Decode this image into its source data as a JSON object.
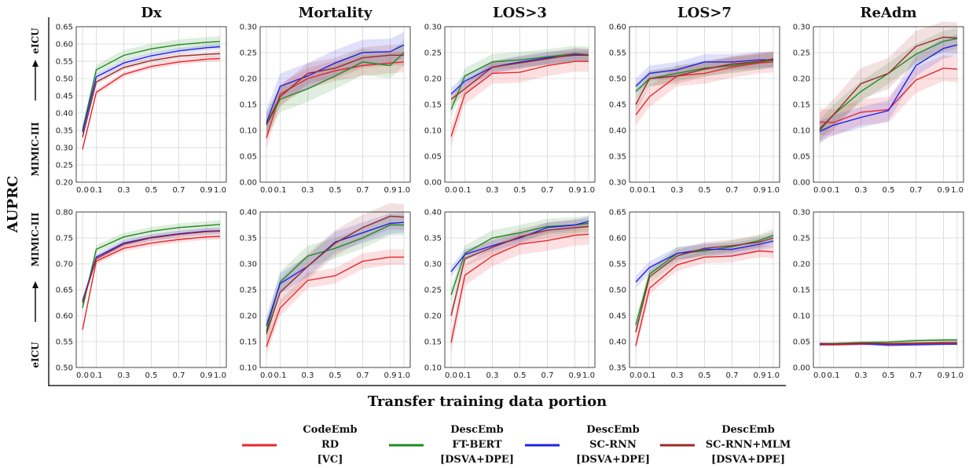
{
  "figure": {
    "column_titles": [
      "Dx",
      "Mortality",
      "LOS>3",
      "LOS>7",
      "ReAdm"
    ],
    "row_labels": [
      {
        "top": "eICU",
        "bottom": "MIMIC-III"
      },
      {
        "top": "MIMIC-III",
        "bottom": "eICU"
      }
    ],
    "ylabel": "AUPRC",
    "xlabel": "Transfer training data portion"
  },
  "legend": [
    {
      "lines": [
        "CodeEmb",
        "RD",
        "[VC]"
      ],
      "color": "#e8262b"
    },
    {
      "lines": [
        "DescEmb",
        "FT-BERT",
        "[DSVA+DPE]"
      ],
      "color": "#1f8a1f"
    },
    {
      "lines": [
        "DescEmb",
        "SC-RNN",
        "[DSVA+DPE]"
      ],
      "color": "#2222e6"
    },
    {
      "lines": [
        "DescEmb",
        "SC-RNN+MLM",
        "[DSVA+DPE]"
      ],
      "color": "#9b2a2a"
    }
  ],
  "chart_data": [
    {
      "type": "line",
      "title": "Dx",
      "row": 0,
      "col": 0,
      "x": [
        0.0,
        0.1,
        0.3,
        0.5,
        0.7,
        0.9,
        1.0
      ],
      "x_tick_labels": [
        "0.0",
        "0.1",
        "0.3",
        "0.5",
        "0.7",
        "0.9",
        "1.0"
      ],
      "ylim": [
        0.2,
        0.65
      ],
      "y_ticks": [
        "0.20",
        "0.25",
        "0.30",
        "0.35",
        "0.40",
        "0.45",
        "0.50",
        "0.55",
        "0.60",
        "0.65"
      ],
      "series": [
        {
          "values": [
            0.295,
            0.46,
            0.512,
            0.535,
            0.548,
            0.556,
            0.558
          ],
          "band": 0.008
        },
        {
          "values": [
            0.35,
            0.525,
            0.567,
            0.586,
            0.598,
            0.605,
            0.607
          ],
          "band": 0.015
        },
        {
          "values": [
            0.345,
            0.505,
            0.545,
            0.566,
            0.58,
            0.589,
            0.592
          ],
          "band": 0.008
        },
        {
          "values": [
            0.33,
            0.49,
            0.532,
            0.552,
            0.565,
            0.57,
            0.572
          ],
          "band": 0.008
        }
      ]
    },
    {
      "type": "line",
      "title": "Mortality",
      "row": 0,
      "col": 1,
      "x": [
        0.0,
        0.1,
        0.3,
        0.5,
        0.7,
        0.9,
        1.0
      ],
      "x_tick_labels": [
        "0.0",
        "0.1",
        "0.3",
        "0.5",
        "0.7",
        "0.9",
        "1.0"
      ],
      "ylim": [
        0.0,
        0.3
      ],
      "y_ticks": [
        "0.00",
        "0.05",
        "0.10",
        "0.15",
        "0.20",
        "0.25",
        "0.30"
      ],
      "series": [
        {
          "values": [
            0.085,
            0.17,
            0.2,
            0.215,
            0.225,
            0.23,
            0.232
          ],
          "band": 0.02
        },
        {
          "values": [
            0.11,
            0.16,
            0.18,
            0.205,
            0.232,
            0.225,
            0.25
          ],
          "band": 0.025
        },
        {
          "values": [
            0.115,
            0.185,
            0.205,
            0.23,
            0.25,
            0.252,
            0.265
          ],
          "band": 0.025
        },
        {
          "values": [
            0.112,
            0.165,
            0.21,
            0.22,
            0.24,
            0.245,
            0.245
          ],
          "band": 0.02
        }
      ]
    },
    {
      "type": "line",
      "title": "LOS>3",
      "row": 0,
      "col": 2,
      "x": [
        0.0,
        0.1,
        0.3,
        0.5,
        0.7,
        0.9,
        1.0
      ],
      "x_tick_labels": [
        "0.0",
        "0.1",
        "0.3",
        "0.5",
        "0.7",
        "0.9",
        "1.0"
      ],
      "ylim": [
        0.0,
        0.3
      ],
      "y_ticks": [
        "0.00",
        "0.05",
        "0.10",
        "0.15",
        "0.20",
        "0.25",
        "0.30"
      ],
      "series": [
        {
          "values": [
            0.088,
            0.17,
            0.21,
            0.212,
            0.225,
            0.233,
            0.233
          ],
          "band": 0.02
        },
        {
          "values": [
            0.14,
            0.205,
            0.232,
            0.236,
            0.242,
            0.248,
            0.246
          ],
          "band": 0.015
        },
        {
          "values": [
            0.17,
            0.195,
            0.222,
            0.232,
            0.24,
            0.245,
            0.245
          ],
          "band": 0.012
        },
        {
          "values": [
            0.16,
            0.18,
            0.222,
            0.23,
            0.238,
            0.247,
            0.245
          ],
          "band": 0.012
        }
      ]
    },
    {
      "type": "line",
      "title": "LOS>7",
      "row": 0,
      "col": 3,
      "x": [
        0.0,
        0.1,
        0.3,
        0.5,
        0.7,
        0.9,
        1.0
      ],
      "x_tick_labels": [
        "0.0",
        "0.1",
        "0.3",
        "0.5",
        "0.7",
        "0.9",
        "1.0"
      ],
      "ylim": [
        0.3,
        0.6
      ],
      "y_ticks": [
        "0.30",
        "0.35",
        "0.40",
        "0.45",
        "0.50",
        "0.55",
        "0.60"
      ],
      "series": [
        {
          "values": [
            0.43,
            0.465,
            0.505,
            0.51,
            0.522,
            0.53,
            0.532
          ],
          "band": 0.02
        },
        {
          "values": [
            0.475,
            0.5,
            0.51,
            0.52,
            0.525,
            0.532,
            0.535
          ],
          "band": 0.015
        },
        {
          "values": [
            0.485,
            0.51,
            0.517,
            0.532,
            0.532,
            0.536,
            0.536
          ],
          "band": 0.015
        },
        {
          "values": [
            0.45,
            0.5,
            0.505,
            0.518,
            0.528,
            0.533,
            0.538
          ],
          "band": 0.015
        }
      ]
    },
    {
      "type": "line",
      "title": "ReAdm",
      "row": 0,
      "col": 4,
      "x": [
        0.0,
        0.1,
        0.3,
        0.5,
        0.7,
        0.9,
        1.0
      ],
      "x_tick_labels": [
        "0.0",
        "0.1",
        "0.3",
        "0.5",
        "0.7",
        "0.9",
        "1.0"
      ],
      "ylim": [
        0.0,
        0.3
      ],
      "y_ticks": [
        "0.00",
        "0.05",
        "0.10",
        "0.15",
        "0.20",
        "0.25",
        "0.30"
      ],
      "series": [
        {
          "values": [
            0.116,
            0.115,
            0.135,
            0.14,
            0.197,
            0.22,
            0.218
          ],
          "band": 0.025
        },
        {
          "values": [
            0.1,
            0.13,
            0.175,
            0.21,
            0.247,
            0.272,
            0.277
          ],
          "band": 0.02
        },
        {
          "values": [
            0.098,
            0.11,
            0.125,
            0.138,
            0.225,
            0.258,
            0.265
          ],
          "band": 0.02
        },
        {
          "values": [
            0.103,
            0.13,
            0.19,
            0.21,
            0.262,
            0.28,
            0.278
          ],
          "band": 0.03
        }
      ]
    },
    {
      "type": "line",
      "row": 1,
      "col": 0,
      "x": [
        0.0,
        0.1,
        0.3,
        0.5,
        0.7,
        0.9,
        1.0
      ],
      "x_tick_labels": [
        "0.0",
        "0.1",
        "0.3",
        "0.5",
        "0.7",
        "0.9",
        "1.0"
      ],
      "ylim": [
        0.5,
        0.8
      ],
      "y_ticks": [
        "0.50",
        "0.55",
        "0.60",
        "0.65",
        "0.70",
        "0.75",
        "0.80"
      ],
      "series": [
        {
          "values": [
            0.573,
            0.705,
            0.73,
            0.74,
            0.747,
            0.752,
            0.753
          ],
          "band": 0.006
        },
        {
          "values": [
            0.615,
            0.728,
            0.752,
            0.763,
            0.77,
            0.774,
            0.776
          ],
          "band": 0.008
        },
        {
          "values": [
            0.628,
            0.713,
            0.74,
            0.751,
            0.758,
            0.763,
            0.764
          ],
          "band": 0.006
        },
        {
          "values": [
            0.625,
            0.71,
            0.738,
            0.75,
            0.757,
            0.762,
            0.763
          ],
          "band": 0.006
        }
      ]
    },
    {
      "type": "line",
      "row": 1,
      "col": 1,
      "x": [
        0.0,
        0.1,
        0.3,
        0.5,
        0.7,
        0.9,
        1.0
      ],
      "x_tick_labels": [
        "0.0",
        "0.1",
        "0.3",
        "0.5",
        "0.7",
        "0.9",
        "1.0"
      ],
      "ylim": [
        0.1,
        0.4
      ],
      "y_ticks": [
        "0.10",
        "0.15",
        "0.20",
        "0.25",
        "0.30",
        "0.35",
        "0.40"
      ],
      "series": [
        {
          "values": [
            0.14,
            0.215,
            0.268,
            0.277,
            0.305,
            0.313,
            0.313
          ],
          "band": 0.015
        },
        {
          "values": [
            0.17,
            0.265,
            0.315,
            0.33,
            0.35,
            0.375,
            0.375
          ],
          "band": 0.02
        },
        {
          "values": [
            0.18,
            0.262,
            0.295,
            0.342,
            0.36,
            0.378,
            0.38
          ],
          "band": 0.02
        },
        {
          "values": [
            0.165,
            0.245,
            0.295,
            0.34,
            0.37,
            0.392,
            0.39
          ],
          "band": 0.025
        }
      ]
    },
    {
      "type": "line",
      "row": 1,
      "col": 2,
      "x": [
        0.0,
        0.1,
        0.3,
        0.5,
        0.7,
        0.9,
        1.0
      ],
      "x_tick_labels": [
        "0.0",
        "0.1",
        "0.3",
        "0.5",
        "0.7",
        "0.9",
        "1.0"
      ],
      "ylim": [
        0.1,
        0.4
      ],
      "y_ticks": [
        "0.10",
        "0.15",
        "0.20",
        "0.25",
        "0.30",
        "0.35",
        "0.40"
      ],
      "series": [
        {
          "values": [
            0.148,
            0.278,
            0.315,
            0.338,
            0.345,
            0.355,
            0.357
          ],
          "band": 0.02
        },
        {
          "values": [
            0.24,
            0.32,
            0.35,
            0.36,
            0.372,
            0.375,
            0.378
          ],
          "band": 0.015
        },
        {
          "values": [
            0.285,
            0.318,
            0.335,
            0.35,
            0.37,
            0.375,
            0.382
          ],
          "band": 0.01
        },
        {
          "values": [
            0.2,
            0.31,
            0.332,
            0.352,
            0.365,
            0.37,
            0.372
          ],
          "band": 0.015
        }
      ]
    },
    {
      "type": "line",
      "row": 1,
      "col": 3,
      "x": [
        0.0,
        0.1,
        0.3,
        0.5,
        0.7,
        0.9,
        1.0
      ],
      "x_tick_labels": [
        "0.0",
        "0.1",
        "0.3",
        "0.5",
        "0.7",
        "0.9",
        "1.0"
      ],
      "ylim": [
        0.35,
        0.65
      ],
      "y_ticks": [
        "0.35",
        "0.40",
        "0.45",
        "0.50",
        "0.55",
        "0.60",
        "0.65"
      ],
      "series": [
        {
          "values": [
            0.392,
            0.503,
            0.548,
            0.563,
            0.565,
            0.575,
            0.573
          ],
          "band": 0.012
        },
        {
          "values": [
            0.432,
            0.53,
            0.57,
            0.575,
            0.583,
            0.595,
            0.605
          ],
          "band": 0.012
        },
        {
          "values": [
            0.515,
            0.543,
            0.57,
            0.578,
            0.578,
            0.588,
            0.594
          ],
          "band": 0.012
        },
        {
          "values": [
            0.418,
            0.525,
            0.565,
            0.58,
            0.585,
            0.592,
            0.6
          ],
          "band": 0.012
        }
      ]
    },
    {
      "type": "line",
      "row": 1,
      "col": 4,
      "x": [
        0.0,
        0.1,
        0.3,
        0.5,
        0.7,
        0.9,
        1.0
      ],
      "x_tick_labels": [
        "0.0",
        "0.1",
        "0.3",
        "0.5",
        "0.7",
        "0.9",
        "1.0"
      ],
      "ylim": [
        0.0,
        0.3
      ],
      "y_ticks": [
        "0.00",
        "0.05",
        "0.10",
        "0.15",
        "0.20",
        "0.25",
        "0.30"
      ],
      "series": [
        {
          "values": [
            0.044,
            0.044,
            0.045,
            0.045,
            0.046,
            0.047,
            0.047
          ],
          "band": 0.003
        },
        {
          "values": [
            0.046,
            0.046,
            0.048,
            0.049,
            0.052,
            0.053,
            0.053
          ],
          "band": 0.003
        },
        {
          "values": [
            0.045,
            0.045,
            0.046,
            0.043,
            0.044,
            0.045,
            0.045
          ],
          "band": 0.003
        },
        {
          "values": [
            0.046,
            0.045,
            0.047,
            0.046,
            0.047,
            0.048,
            0.048
          ],
          "band": 0.003
        }
      ]
    }
  ]
}
